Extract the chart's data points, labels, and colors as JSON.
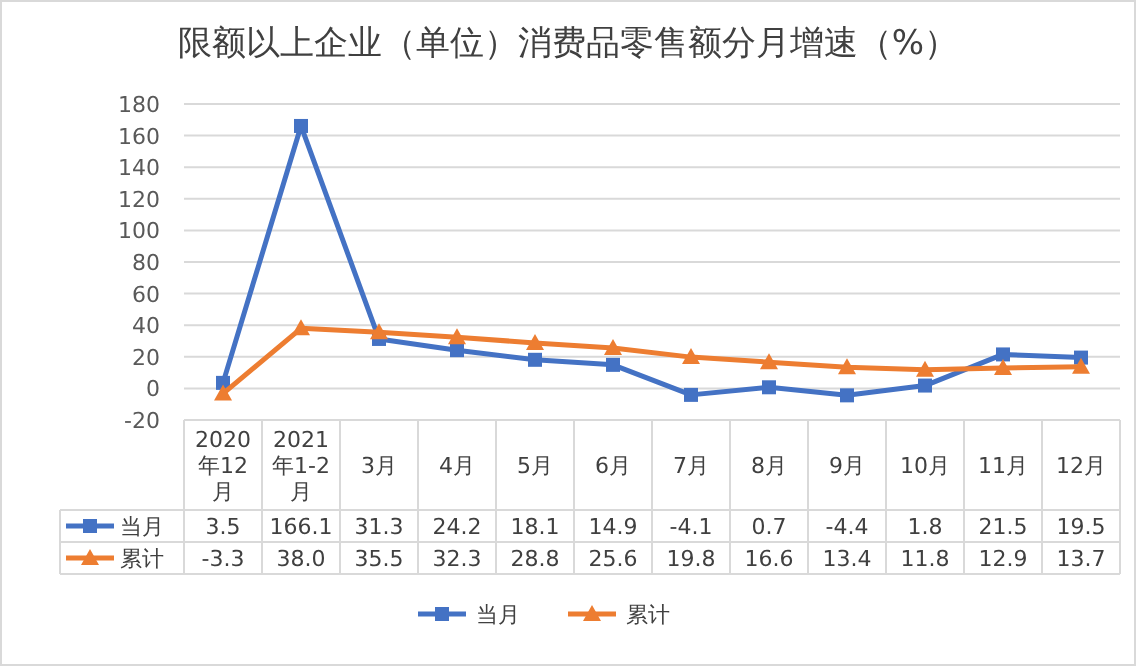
{
  "chart_data": {
    "type": "line",
    "title": "限额以上企业（单位）消费品零售额分月增速（%）",
    "categories": [
      "2020年12月",
      "2021年1-2月",
      "3月",
      "4月",
      "5月",
      "6月",
      "7月",
      "8月",
      "9月",
      "10月",
      "11月",
      "12月"
    ],
    "series": [
      {
        "name": "当月",
        "color": "#4472c4",
        "marker": "square",
        "values": [
          3.5,
          166.1,
          31.3,
          24.2,
          18.1,
          14.9,
          -4.1,
          0.7,
          -4.4,
          1.8,
          21.5,
          19.5
        ],
        "value_labels": [
          "3.5",
          "166.1",
          "31.3",
          "24.2",
          "18.1",
          "14.9",
          "-4.1",
          "0.7",
          "-4.4",
          "1.8",
          "21.5",
          "19.5"
        ]
      },
      {
        "name": "累计",
        "color": "#ed7d31",
        "marker": "triangle",
        "values": [
          -3.3,
          38.0,
          35.5,
          32.3,
          28.8,
          25.6,
          19.8,
          16.6,
          13.4,
          11.8,
          12.9,
          13.7
        ],
        "value_labels": [
          "-3.3",
          "38.0",
          "35.5",
          "32.3",
          "28.8",
          "25.6",
          "19.8",
          "16.6",
          "13.4",
          "11.8",
          "12.9",
          "13.7"
        ]
      }
    ],
    "ylim": [
      -20,
      180
    ],
    "yticks": [
      -20,
      0,
      20,
      40,
      60,
      80,
      100,
      120,
      140,
      160,
      180
    ],
    "grid": "y",
    "legend": "bottom"
  }
}
